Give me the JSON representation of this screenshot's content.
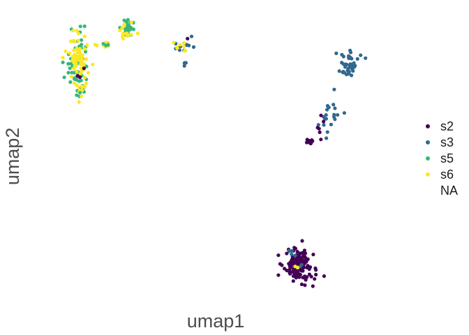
{
  "chart_data": {
    "type": "scatter",
    "xlabel": "umap1",
    "ylabel": "umap2",
    "grid": false,
    "axis_ticks": false,
    "legend_position": "right",
    "xlim": [
      0,
      100
    ],
    "ylim": [
      0,
      100
    ],
    "legend": [
      {
        "label": "s2",
        "color": "#440154"
      },
      {
        "label": "s3",
        "color": "#31688e"
      },
      {
        "label": "s5",
        "color": "#35b779"
      },
      {
        "label": "s6",
        "color": "#fde725"
      },
      {
        "label": "NA",
        "color": null
      }
    ],
    "clusters": [
      {
        "series": "s5",
        "center": [
          11.0,
          84.0
        ],
        "spread": [
          1.4,
          5.5
        ],
        "n": 55
      },
      {
        "series": "s6",
        "center": [
          11.0,
          84.0
        ],
        "spread": [
          1.4,
          5.5
        ],
        "n": 70
      },
      {
        "series": "s2",
        "center": [
          11.8,
          80.0
        ],
        "spread": [
          0.6,
          1.5
        ],
        "n": 3
      },
      {
        "series": "s5",
        "center": [
          12.4,
          74.5
        ],
        "spread": [
          0.5,
          0.9
        ],
        "n": 7
      },
      {
        "series": "s6",
        "center": [
          12.4,
          74.0
        ],
        "spread": [
          0.5,
          0.9
        ],
        "n": 4
      },
      {
        "series": "s5",
        "center": [
          24.2,
          95.5
        ],
        "spread": [
          1.0,
          1.7
        ],
        "n": 28
      },
      {
        "series": "s6",
        "center": [
          23.2,
          94.3
        ],
        "spread": [
          1.3,
          1.3
        ],
        "n": 14
      },
      {
        "series": "s6",
        "center": [
          17.5,
          89.5
        ],
        "spread": [
          1.0,
          0.4
        ],
        "n": 10
      },
      {
        "series": "s5",
        "center": [
          17.6,
          89.7
        ],
        "spread": [
          1.0,
          0.4
        ],
        "n": 3
      },
      {
        "series": "s3",
        "center": [
          39.2,
          88.6
        ],
        "spread": [
          1.6,
          3.4
        ],
        "n": 12
      },
      {
        "series": "s6",
        "center": [
          38.7,
          89.0
        ],
        "spread": [
          1.0,
          2.0
        ],
        "n": 8
      },
      {
        "series": "s3",
        "center": [
          39.7,
          83.4
        ],
        "spread": [
          0.3,
          0.2
        ],
        "n": 3
      },
      {
        "series": "s2",
        "center": [
          39.8,
          92.1
        ],
        "spread": [
          0.2,
          0.2
        ],
        "n": 1
      },
      {
        "series": "s3",
        "center": [
          83.0,
          82.3
        ],
        "spread": [
          1.5,
          2.1
        ],
        "n": 45
      },
      {
        "series": "s3",
        "center": [
          77.7,
          64.3
        ],
        "spread": [
          1.6,
          3.9
        ],
        "n": 20
      },
      {
        "series": "s2",
        "center": [
          75.5,
          61.5
        ],
        "spread": [
          0.7,
          2.2
        ],
        "n": 6
      },
      {
        "series": "s2",
        "center": [
          72.8,
          55.5
        ],
        "spread": [
          0.4,
          0.3
        ],
        "n": 22
      },
      {
        "series": "s2",
        "center": [
          69.6,
          11.4
        ],
        "spread": [
          2.0,
          2.8
        ],
        "n": 150
      },
      {
        "series": "s3",
        "center": [
          67.9,
          16.6
        ],
        "spread": [
          0.4,
          0.8
        ],
        "n": 5
      },
      {
        "series": "s3",
        "center": [
          70.1,
          11.4
        ],
        "spread": [
          0.4,
          0.4
        ],
        "n": 3
      },
      {
        "series": "s6",
        "center": [
          69.4,
          11.2
        ],
        "spread": [
          0.3,
          0.3
        ],
        "n": 2
      }
    ]
  }
}
